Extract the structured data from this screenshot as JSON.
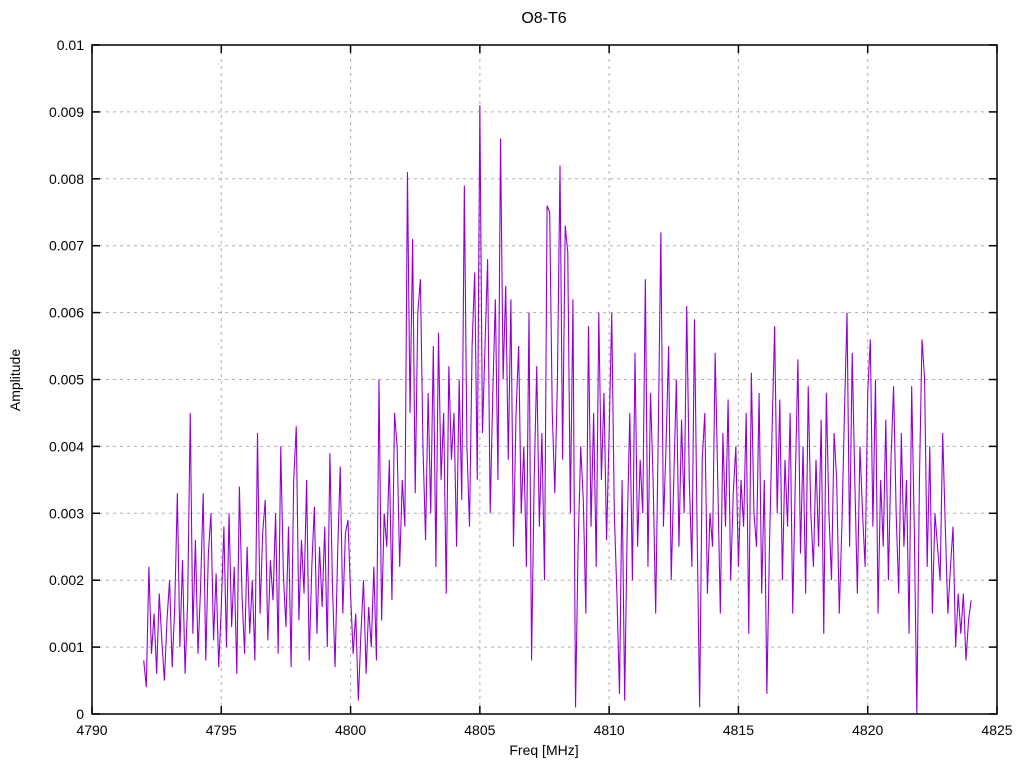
{
  "chart_data": {
    "type": "line",
    "title": "O8-T6",
    "xlabel": "Freq [MHz]",
    "ylabel": "Amplitude",
    "xlim": [
      4790,
      4825
    ],
    "ylim": [
      0,
      0.01
    ],
    "grid": true,
    "legend": "none",
    "x_ticks": [
      4790,
      4795,
      4800,
      4805,
      4810,
      4815,
      4820,
      4825
    ],
    "x_tick_labels": [
      "4790",
      "4795",
      "4800",
      "4805",
      "4810",
      "4815",
      "4820",
      "4825"
    ],
    "y_ticks": [
      0,
      0.001,
      0.002,
      0.003,
      0.004,
      0.005,
      0.006,
      0.007,
      0.008,
      0.009,
      0.01
    ],
    "y_tick_labels": [
      "0",
      "0.001",
      "0.002",
      "0.003",
      "0.004",
      "0.005",
      "0.006",
      "0.007",
      "0.008",
      "0.009",
      "0.01"
    ],
    "colors": {
      "line": "#9400d3",
      "grid": "#b0b0b0",
      "axis": "#000000",
      "background": "#ffffff"
    },
    "x_start": 4792.0,
    "x_step": 0.1,
    "amplitude_scale": 0.0001,
    "amplitudes": [
      8,
      4,
      22,
      9,
      15,
      6,
      18,
      11,
      5,
      14,
      20,
      7,
      16,
      33,
      10,
      23,
      6,
      17,
      45,
      12,
      26,
      9,
      19,
      33,
      8,
      24,
      30,
      11,
      21,
      7,
      16,
      28,
      10,
      30,
      13,
      22,
      6,
      34,
      18,
      9,
      25,
      12,
      20,
      8,
      42,
      15,
      27,
      32,
      11,
      23,
      17,
      30,
      9,
      40,
      21,
      13,
      28,
      7,
      35,
      43,
      14,
      26,
      18,
      35,
      8,
      22,
      31,
      12,
      25,
      16,
      28,
      10,
      39,
      19,
      7,
      24,
      37,
      15,
      27,
      29,
      18,
      9,
      15,
      2,
      12,
      20,
      6,
      16,
      10,
      22,
      8,
      50,
      14,
      30,
      25,
      38,
      17,
      45,
      40,
      22,
      35,
      28,
      81,
      45,
      71,
      33,
      60,
      65,
      40,
      26,
      48,
      30,
      55,
      22,
      57,
      35,
      45,
      18,
      52,
      38,
      45,
      25,
      50,
      32,
      79,
      40,
      28,
      55,
      66,
      35,
      91,
      42,
      55,
      68,
      30,
      48,
      62,
      35,
      86,
      50,
      64,
      38,
      62,
      25,
      45,
      55,
      30,
      40,
      22,
      60,
      8,
      35,
      52,
      28,
      42,
      20,
      76,
      75,
      45,
      33,
      50,
      82,
      38,
      73,
      69,
      30,
      62,
      1,
      25,
      40,
      32,
      15,
      58,
      28,
      45,
      22,
      60,
      35,
      48,
      26,
      42,
      60,
      30,
      18,
      3,
      35,
      2,
      28,
      45,
      20,
      54,
      25,
      38,
      30,
      65,
      22,
      48,
      35,
      15,
      42,
      72,
      28,
      40,
      55,
      20,
      35,
      50,
      25,
      44,
      30,
      61,
      35,
      22,
      59,
      28,
      1,
      38,
      45,
      18,
      30,
      25,
      54,
      35,
      15,
      42,
      28,
      47,
      20,
      33,
      40,
      22,
      35,
      28,
      45,
      12,
      51,
      30,
      25,
      48,
      18,
      35,
      3,
      25,
      42,
      58,
      30,
      47,
      20,
      38,
      28,
      45,
      15,
      35,
      53,
      24,
      40,
      18,
      49,
      30,
      22,
      38,
      25,
      44,
      12,
      48,
      30,
      20,
      42,
      35,
      15,
      28,
      45,
      60,
      25,
      54,
      35,
      18,
      40,
      30,
      22,
      48,
      56,
      28,
      50,
      15,
      35,
      25,
      44,
      20,
      38,
      49,
      30,
      18,
      42,
      25,
      35,
      12,
      49,
      28,
      0,
      35,
      56,
      50,
      22,
      40,
      15,
      30,
      25,
      20,
      42,
      28,
      15,
      22,
      28,
      10,
      18,
      12,
      18,
      8,
      14,
      17
    ]
  }
}
